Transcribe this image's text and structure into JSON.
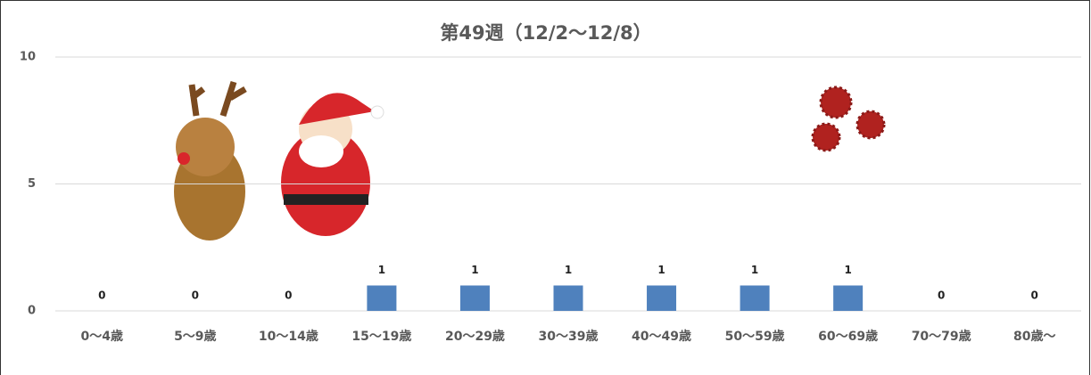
{
  "chart_data": {
    "type": "bar",
    "title": "第49週（12/2〜12/8）",
    "categories": [
      "0〜4歳",
      "5〜9歳",
      "10〜14歳",
      "15〜19歳",
      "20〜29歳",
      "30〜39歳",
      "40〜49歳",
      "50〜59歳",
      "60〜69歳",
      "70〜79歳",
      "80歳〜"
    ],
    "values": [
      0,
      0,
      0,
      1,
      1,
      1,
      1,
      1,
      1,
      0,
      0
    ],
    "color": "#4f81bd",
    "ylim": [
      0,
      10
    ],
    "yticks": [
      0,
      5,
      10
    ],
    "grid": true,
    "data_labels": true
  }
}
